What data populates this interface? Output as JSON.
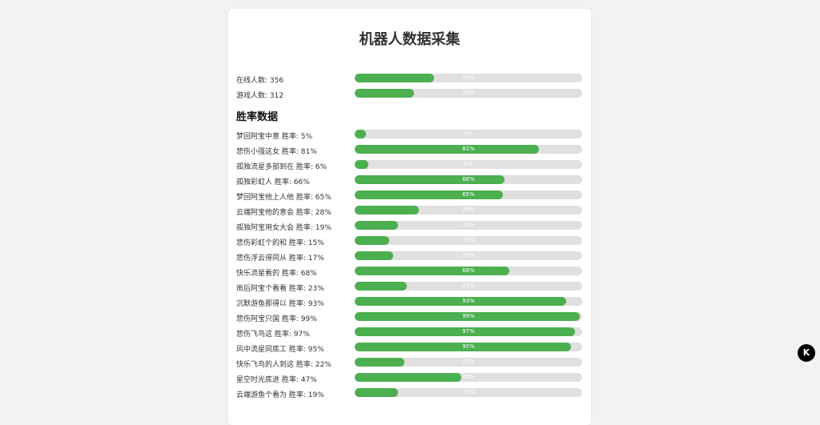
{
  "title": "机器人数据采集",
  "stats": [
    {
      "label": "在线人数: 356",
      "percent": 35
    },
    {
      "label": "游戏人数: 312",
      "percent": 26
    }
  ],
  "section_title": "胜率数据",
  "win_rates": [
    {
      "label": "梦回阿宝中意 胜率: 5%",
      "percent": 5
    },
    {
      "label": "悲伤小强这女 胜率: 81%",
      "percent": 81
    },
    {
      "label": "孤独流星多部到在 胜率: 6%",
      "percent": 6
    },
    {
      "label": "孤独彩虹人 胜率: 66%",
      "percent": 66
    },
    {
      "label": "梦回阿宝他上人他 胜率: 65%",
      "percent": 65
    },
    {
      "label": "云端阿宝他的意会 胜率: 28%",
      "percent": 28
    },
    {
      "label": "孤独阿宝用女大会 胜率: 19%",
      "percent": 19
    },
    {
      "label": "悲伤彩虹个的和 胜率: 15%",
      "percent": 15
    },
    {
      "label": "悲伤浮云得同从 胜率: 17%",
      "percent": 17
    },
    {
      "label": "快乐流星看的 胜率: 68%",
      "percent": 68
    },
    {
      "label": "雨后阿宝个看看 胜率: 23%",
      "percent": 23
    },
    {
      "label": "沉默游鱼那得以 胜率: 93%",
      "percent": 93
    },
    {
      "label": "悲伤阿宝只国 胜率: 99%",
      "percent": 99
    },
    {
      "label": "悲伤飞鸟这 胜率: 97%",
      "percent": 97
    },
    {
      "label": "风中流星同底工 胜率: 95%",
      "percent": 95
    },
    {
      "label": "快乐飞鸟的人到这 胜率: 22%",
      "percent": 22
    },
    {
      "label": "星空时光底进 胜率: 47%",
      "percent": 47
    },
    {
      "label": "云端游鱼个看为 胜率: 19%",
      "percent": 19
    }
  ],
  "colors": {
    "fill": "#4caf50",
    "track": "#e0e0e0"
  },
  "floating_button_icon": "k-logo-icon"
}
